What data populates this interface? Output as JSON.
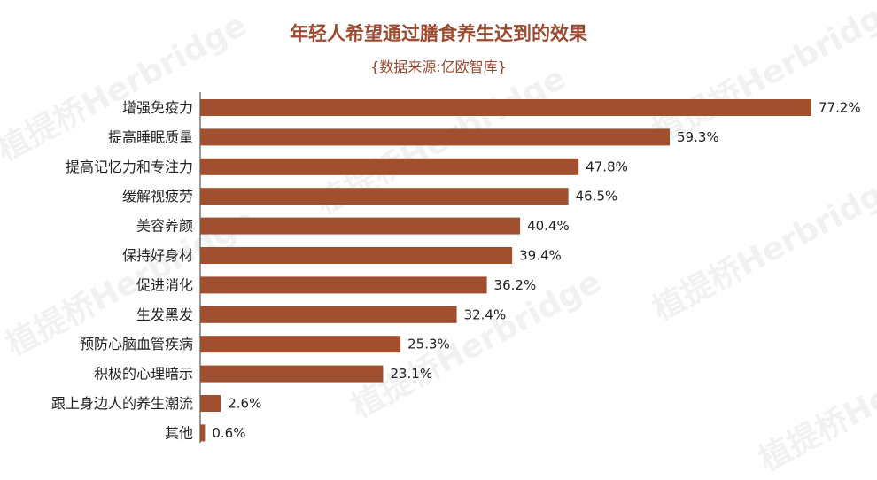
{
  "watermark_text": "植提桥Herbridge",
  "colors": {
    "bar": "#a0502f",
    "axis": "#333333",
    "title": "#9b4a2f"
  },
  "chart_data": {
    "type": "bar",
    "orientation": "horizontal",
    "title": "年轻人希望通过膳食养生达到的效果",
    "subtitle": "{数据来源:亿欧智库}",
    "categories": [
      "增强免疫力",
      "提高睡眠质量",
      "提高记忆力和专注力",
      "缓解视疲劳",
      "美容养颜",
      "保持好身材",
      "促进消化",
      "生发黑发",
      "预防心脑血管疾病",
      "积极的心理暗示",
      "跟上身边人的养生潮流",
      "其他"
    ],
    "values": [
      77.2,
      59.3,
      47.8,
      46.5,
      40.4,
      39.4,
      36.2,
      32.4,
      25.3,
      23.1,
      2.6,
      0.6
    ],
    "value_labels": [
      "77.2%",
      "59.3%",
      "47.8%",
      "46.5%",
      "40.4%",
      "39.4%",
      "36.2%",
      "32.4%",
      "25.3%",
      "23.1%",
      "2.6%",
      "0.6%"
    ],
    "unit": "%",
    "xlim": [
      0,
      77.2
    ],
    "grid": false,
    "legend": "none"
  }
}
